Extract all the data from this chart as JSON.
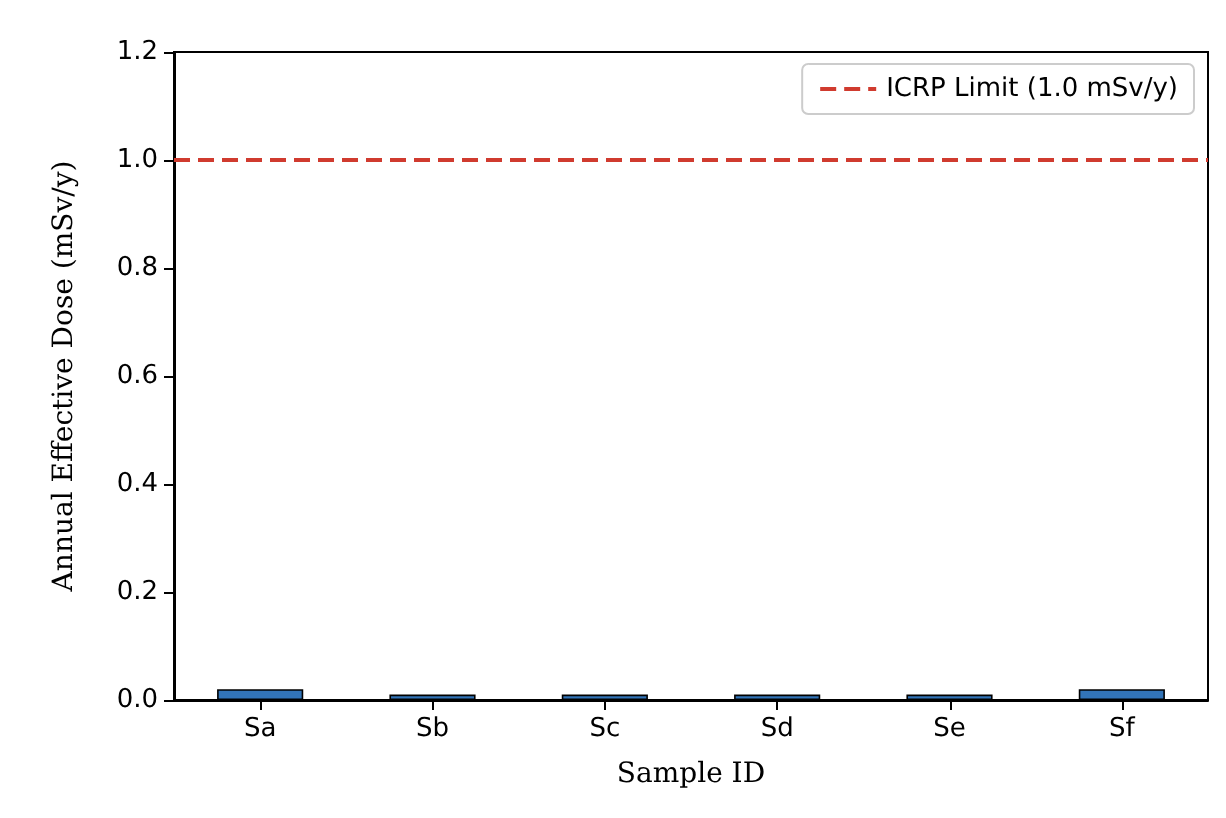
{
  "chart_data": {
    "type": "bar",
    "xlabel": "Sample ID",
    "ylabel": "Annual Effective Dose (mSv/y)",
    "categories": [
      "Sa",
      "Sb",
      "Sc",
      "Sd",
      "Se",
      "Sf"
    ],
    "values": [
      0.02,
      0.01,
      0.01,
      0.01,
      0.01,
      0.02
    ],
    "color": "#3274b8",
    "ylim": [
      0,
      1.2
    ],
    "yticks": [
      {
        "value": 0,
        "label": "0.0"
      },
      {
        "value": 0.2,
        "label": "0.2"
      },
      {
        "value": 0.4,
        "label": "0.4"
      },
      {
        "value": 0.6,
        "label": "0.6"
      },
      {
        "value": 0.8,
        "label": "0.8"
      },
      {
        "value": 1,
        "label": "1.0"
      },
      {
        "value": 1.2,
        "label": "1.2"
      }
    ],
    "ref_lines": [
      {
        "axis": "y",
        "value": 1,
        "label": "ICRP Limit (1.0 mSv/y)",
        "color": "#d03b2f",
        "line_style": "dashed"
      }
    ],
    "legend": "top right",
    "grid": false
  }
}
